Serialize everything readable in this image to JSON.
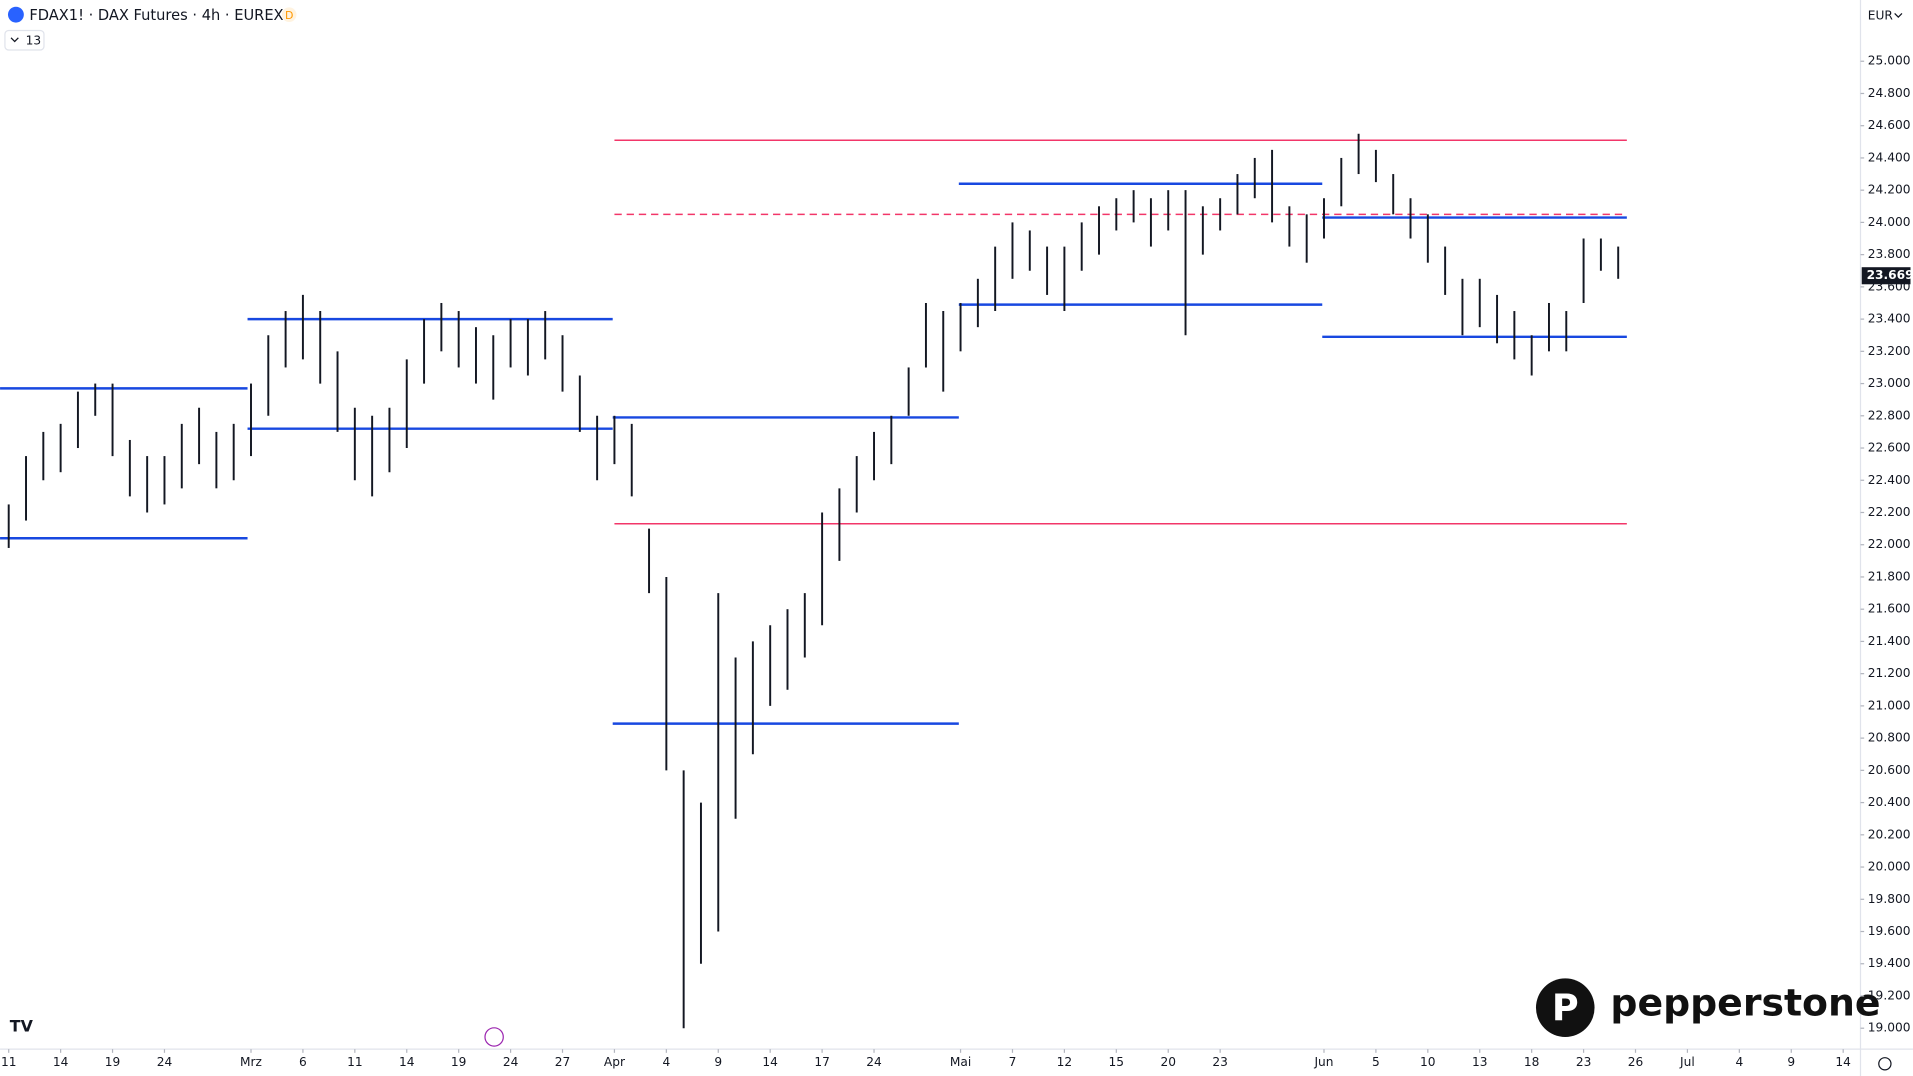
{
  "header": {
    "symbol": "FDAX1! · DAX Futures · 4h · EUREX",
    "badge": "D",
    "indicators": "13",
    "currency": "EUR",
    "brand": "pepperstone"
  },
  "chart_data": {
    "type": "range_bar",
    "x": [
      0,
      1,
      2,
      3,
      4,
      5,
      6,
      7,
      8,
      9,
      10,
      11,
      12,
      13,
      14,
      15,
      16,
      17,
      18,
      19,
      20,
      21,
      22,
      23,
      24,
      25,
      26,
      27,
      28,
      29,
      30,
      31,
      32,
      33,
      34,
      35,
      36,
      37,
      38,
      39,
      40,
      41,
      42,
      43,
      44,
      45,
      46,
      47,
      48,
      49,
      50,
      51,
      52,
      53,
      54,
      55,
      56,
      57,
      58,
      59,
      60,
      61,
      62,
      63,
      64,
      65,
      66,
      67,
      68,
      69,
      70,
      71,
      72,
      73,
      74,
      75,
      76,
      77,
      78,
      79,
      80,
      81,
      82,
      83,
      84,
      85,
      86,
      87,
      88,
      89,
      90,
      91,
      92,
      93
    ],
    "series": [
      {
        "color": "#131722",
        "high": [
          22250,
          22550,
          22700,
          22750,
          22950,
          23000,
          23000,
          22650,
          22550,
          22550,
          22750,
          22850,
          22700,
          22750,
          23000,
          23300,
          23450,
          23550,
          23450,
          23200,
          22850,
          22800,
          22850,
          23150,
          23400,
          23500,
          23450,
          23350,
          23300,
          23400,
          23400,
          23450,
          23300,
          23050,
          22800,
          22800,
          22750,
          22100,
          21800,
          20600,
          20400,
          21700,
          21300,
          21400,
          21500,
          21600,
          21700,
          22200,
          22350,
          22550,
          22700,
          22800,
          23100,
          23500,
          23450,
          23500,
          23650,
          23850,
          24000,
          23950,
          23850,
          23850,
          24000,
          24100,
          24150,
          24200,
          24150,
          24200,
          24200,
          24100,
          24150,
          24300,
          24400,
          24450,
          24100,
          24050,
          24150,
          24400,
          24550,
          24450,
          24300,
          24150,
          24050,
          23850,
          23650,
          23650,
          23550,
          23450,
          23300,
          23500,
          23450,
          23900,
          23900,
          23850
        ],
        "low": [
          21980,
          22150,
          22400,
          22450,
          22600,
          22800,
          22550,
          22300,
          22200,
          22250,
          22350,
          22500,
          22350,
          22400,
          22550,
          22800,
          23100,
          23150,
          23000,
          22700,
          22400,
          22300,
          22450,
          22600,
          23000,
          23200,
          23100,
          23000,
          22900,
          23100,
          23050,
          23150,
          22950,
          22700,
          22400,
          22500,
          22300,
          21700,
          20600,
          19000,
          19400,
          19600,
          20300,
          20700,
          21000,
          21100,
          21300,
          21500,
          21900,
          22200,
          22400,
          22500,
          22800,
          23100,
          22950,
          23200,
          23350,
          23450,
          23650,
          23700,
          23550,
          23450,
          23700,
          23800,
          23950,
          24000,
          23850,
          23950,
          23300,
          23800,
          23950,
          24050,
          24150,
          24000,
          23850,
          23750,
          23900,
          24100,
          24300,
          24250,
          24050,
          23900,
          23750,
          23550,
          23300,
          23350,
          23250,
          23150,
          23050,
          23200,
          23200,
          23500,
          23700,
          23650
        ]
      }
    ],
    "levels": [
      {
        "value": 24510,
        "from": 35,
        "to": 93.5,
        "color": "#f23669",
        "dash": false
      },
      {
        "value": 24050,
        "from": 35,
        "to": 93.5,
        "color": "#f23669",
        "dash": true
      },
      {
        "value": 22130,
        "from": 35,
        "to": 93.5,
        "color": "#f23669",
        "dash": false
      },
      {
        "value": 22970,
        "from": -0.5,
        "to": 13.8,
        "color": "#1848e0",
        "dash": false
      },
      {
        "value": 22040,
        "from": -0.5,
        "to": 13.8,
        "color": "#1848e0",
        "dash": false
      },
      {
        "value": 23400,
        "from": 13.8,
        "to": 34.9,
        "color": "#1848e0",
        "dash": false
      },
      {
        "value": 22720,
        "from": 13.8,
        "to": 34.9,
        "color": "#1848e0",
        "dash": false
      },
      {
        "value": 22790,
        "from": 34.9,
        "to": 54.9,
        "color": "#1848e0",
        "dash": false
      },
      {
        "value": 20890,
        "from": 34.9,
        "to": 54.9,
        "color": "#1848e0",
        "dash": false
      },
      {
        "value": 24240,
        "from": 54.9,
        "to": 75.9,
        "color": "#1848e0",
        "dash": false
      },
      {
        "value": 23490,
        "from": 54.9,
        "to": 75.9,
        "color": "#1848e0",
        "dash": false
      },
      {
        "value": 24030,
        "from": 75.9,
        "to": 93.5,
        "color": "#1848e0",
        "dash": false
      },
      {
        "value": 23290,
        "from": 75.9,
        "to": 93.5,
        "color": "#1848e0",
        "dash": false
      }
    ],
    "last": {
      "value": 23669,
      "label": "23.669"
    },
    "xlim": [
      -0.5,
      107
    ],
    "xticks": [
      {
        "value": 0,
        "label": "11"
      },
      {
        "value": 3,
        "label": "14"
      },
      {
        "value": 6,
        "label": "19"
      },
      {
        "value": 9,
        "label": "24"
      },
      {
        "value": 14,
        "label": "Mrz"
      },
      {
        "value": 17,
        "label": "6"
      },
      {
        "value": 20,
        "label": "11"
      },
      {
        "value": 23,
        "label": "14"
      },
      {
        "value": 26,
        "label": "19"
      },
      {
        "value": 29,
        "label": "24"
      },
      {
        "value": 32,
        "label": "27"
      },
      {
        "value": 35,
        "label": "Apr"
      },
      {
        "value": 38,
        "label": "4"
      },
      {
        "value": 41,
        "label": "9"
      },
      {
        "value": 44,
        "label": "14"
      },
      {
        "value": 47,
        "label": "17"
      },
      {
        "value": 50,
        "label": "24"
      },
      {
        "value": 55,
        "label": "Mai"
      },
      {
        "value": 58,
        "label": "7"
      },
      {
        "value": 61,
        "label": "12"
      },
      {
        "value": 64,
        "label": "15"
      },
      {
        "value": 67,
        "label": "20"
      },
      {
        "value": 70,
        "label": "23"
      },
      {
        "value": 76,
        "label": "Jun"
      },
      {
        "value": 79,
        "label": "5"
      },
      {
        "value": 82,
        "label": "10"
      },
      {
        "value": 85,
        "label": "13"
      },
      {
        "value": 88,
        "label": "18"
      },
      {
        "value": 91,
        "label": "23"
      },
      {
        "value": 94,
        "label": "26"
      },
      {
        "value": 97,
        "label": "Jul"
      },
      {
        "value": 100,
        "label": "4"
      },
      {
        "value": 103,
        "label": "9"
      },
      {
        "value": 106,
        "label": "14"
      }
    ],
    "ylim": [
      18870,
      25380
    ],
    "yticks": [
      {
        "value": 19000,
        "label": "19.000"
      },
      {
        "value": 19200,
        "label": "19.200"
      },
      {
        "value": 19400,
        "label": "19.400"
      },
      {
        "value": 19600,
        "label": "19.600"
      },
      {
        "value": 19800,
        "label": "19.800"
      },
      {
        "value": 20000,
        "label": "20.000"
      },
      {
        "value": 20200,
        "label": "20.200"
      },
      {
        "value": 20400,
        "label": "20.400"
      },
      {
        "value": 20600,
        "label": "20.600"
      },
      {
        "value": 20800,
        "label": "20.800"
      },
      {
        "value": 21000,
        "label": "21.000"
      },
      {
        "value": 21200,
        "label": "21.200"
      },
      {
        "value": 21400,
        "label": "21.400"
      },
      {
        "value": 21600,
        "label": "21.600"
      },
      {
        "value": 21800,
        "label": "21.800"
      },
      {
        "value": 22000,
        "label": "22.000"
      },
      {
        "value": 22200,
        "label": "22.200"
      },
      {
        "value": 22400,
        "label": "22.400"
      },
      {
        "value": 22600,
        "label": "22.600"
      },
      {
        "value": 22800,
        "label": "22.800"
      },
      {
        "value": 23000,
        "label": "23.000"
      },
      {
        "value": 23200,
        "label": "23.200"
      },
      {
        "value": 23400,
        "label": "23.400"
      },
      {
        "value": 23600,
        "label": "23.600"
      },
      {
        "value": 23800,
        "label": "23.800"
      },
      {
        "value": 24000,
        "label": "24.000"
      },
      {
        "value": 24200,
        "label": "24.200"
      },
      {
        "value": 24400,
        "label": "24.400"
      },
      {
        "value": 24600,
        "label": "24.600"
      },
      {
        "value": 24800,
        "label": "24.800"
      },
      {
        "value": 25000,
        "label": "25.000"
      }
    ]
  }
}
